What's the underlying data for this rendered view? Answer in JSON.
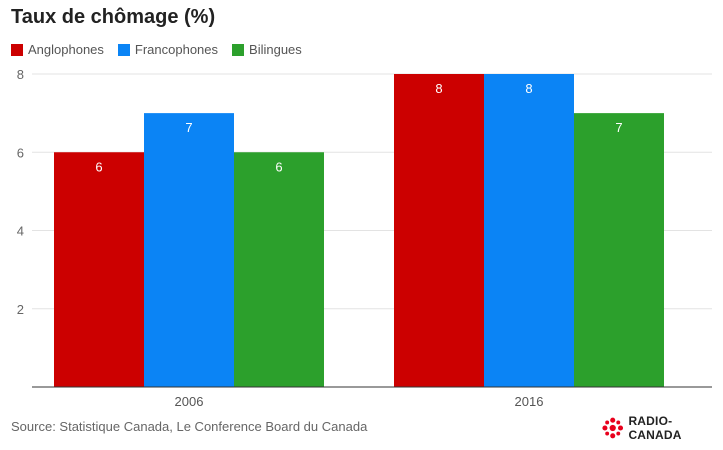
{
  "title": "Taux de chômage (%)",
  "legend": [
    {
      "label": "Anglophones",
      "color": "#cc0000"
    },
    {
      "label": "Francophones",
      "color": "#0b84f5"
    },
    {
      "label": "Bilingues",
      "color": "#2ca02c"
    }
  ],
  "source": "Source: Statistique Canada, Le Conference Board du Canada",
  "brand": {
    "name": "RADIO-CANADA",
    "icon": "radio-canada-logo-icon",
    "color": "#e8001c"
  },
  "chart_data": {
    "type": "bar",
    "title": "Taux de chômage (%)",
    "categories": [
      "2006",
      "2016"
    ],
    "series": [
      {
        "name": "Anglophones",
        "values": [
          6,
          8
        ],
        "color": "#cc0000"
      },
      {
        "name": "Francophones",
        "values": [
          7,
          8
        ],
        "color": "#0b84f5"
      },
      {
        "name": "Bilingues",
        "values": [
          6,
          7
        ],
        "color": "#2ca02c"
      }
    ],
    "yticks": [
      2,
      4,
      6,
      8
    ],
    "ylim": [
      0,
      8
    ],
    "grid": true,
    "legend_position": "top-left",
    "data_labels": true
  }
}
